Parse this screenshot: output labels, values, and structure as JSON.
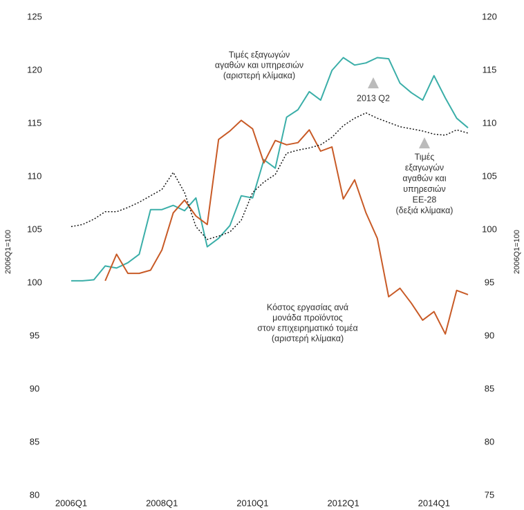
{
  "chart_data": {
    "type": "line",
    "ylabel": "2006Q1=100",
    "y2label": "2006Q1=100",
    "categories": [
      "2006Q1",
      null,
      null,
      null,
      null,
      null,
      null,
      null,
      "2008Q1",
      null,
      null,
      null,
      null,
      null,
      null,
      null,
      "2010Q1",
      null,
      null,
      null,
      null,
      null,
      null,
      null,
      "2012Q1",
      null,
      null,
      null,
      null,
      null,
      null,
      null,
      "2014Q1",
      null,
      null,
      null
    ],
    "ylim": [
      80,
      125
    ],
    "yticks": [
      80,
      85,
      90,
      95,
      100,
      105,
      110,
      115,
      120,
      125
    ],
    "y2lim": [
      75,
      120
    ],
    "y2ticks": [
      75,
      80,
      85,
      90,
      95,
      100,
      105,
      110,
      115,
      120
    ],
    "series": [
      {
        "name": "Τιμές εξαγωγών αγαθών και υπηρεσιών (αριστερή κλίμακα)",
        "color": "#3aaea8",
        "dash": "solid",
        "values": [
          100.2,
          100.2,
          100.3,
          101.6,
          101.4,
          101.9,
          102.7,
          106.9,
          106.9,
          107.3,
          106.8,
          108.0,
          103.4,
          104.2,
          105.4,
          108.2,
          108.0,
          111.6,
          110.8,
          115.6,
          116.3,
          118.0,
          117.2,
          120.0,
          121.2,
          120.5,
          120.7,
          121.2,
          121.1,
          118.8,
          117.9,
          117.2,
          119.5,
          117.4,
          115.5,
          114.6
        ]
      },
      {
        "name": "Κόστος εργασίας ανά μονάδα προϊόντος στον επιχειρηματικό τομέα (αριστερή κλίμακα)",
        "color": "#c85a26",
        "dash": "solid",
        "values": [
          null,
          null,
          null,
          100.2,
          102.7,
          100.9,
          100.9,
          101.2,
          103.1,
          106.6,
          107.8,
          106.3,
          105.5,
          113.5,
          114.3,
          115.3,
          114.5,
          111.3,
          113.4,
          113.0,
          113.2,
          114.4,
          112.4,
          112.8,
          107.9,
          109.7,
          106.6,
          104.2,
          98.7,
          99.5,
          98.1,
          96.5,
          97.3,
          95.2,
          99.3,
          98.9
        ]
      },
      {
        "name": "Τιμές εξαγωγών αγαθών και υπηρεσιών ΕΕ-28 (δεξιά κλίμακα)",
        "color": "#111111",
        "dash": "dotted",
        "axis": "y2",
        "values": [
          100.3,
          100.5,
          101.0,
          101.7,
          101.7,
          102.1,
          102.6,
          103.2,
          103.8,
          105.4,
          103.5,
          100.3,
          99.1,
          99.4,
          99.8,
          100.9,
          103.5,
          104.5,
          105.2,
          107.2,
          107.5,
          107.7,
          108.0,
          108.7,
          109.8,
          110.5,
          111.0,
          110.5,
          110.1,
          109.7,
          109.5,
          109.3,
          109.0,
          108.9,
          109.4,
          109.1
        ]
      }
    ],
    "annotations": [
      {
        "lines": [
          "Τιμές εξαγωγών",
          "αγαθών και υπηρεσιών",
          "(αριστερή κλίμακα)"
        ]
      },
      {
        "lines": [
          "2013 Q2"
        ]
      },
      {
        "lines": [
          "Τιμές",
          "εξαγωγών",
          "αγαθών και",
          "υπηρεσιών",
          "ΕΕ-28",
          "(δεξιά κλίμακα)"
        ]
      },
      {
        "lines": [
          "Κόστος εργασίας ανά",
          "μονάδα προϊόντος",
          "στον επιχειρηματικό τομέα",
          "(αριστερή κλίμακα)"
        ]
      }
    ]
  }
}
